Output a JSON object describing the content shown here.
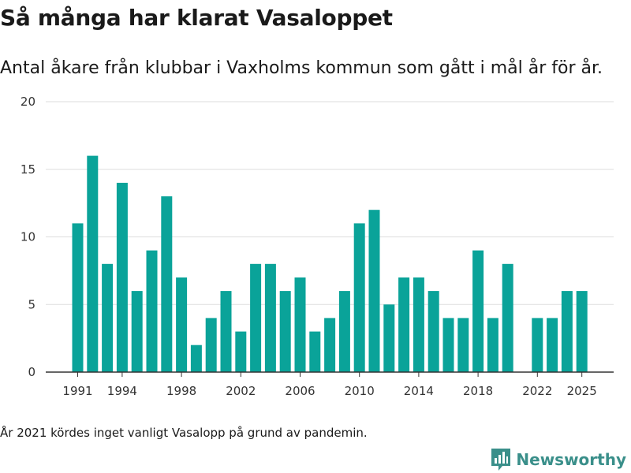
{
  "colors": {
    "bar": "#0aa399",
    "grid": "#dddddd",
    "axis": "#333333",
    "brand": "#3a8f8a"
  },
  "logo": {
    "text": "Newsworthy",
    "icon": "newsworthy-logo-icon"
  },
  "footnote": "År 2021 kördes inget vanligt Vasalopp på grund av pandemin.",
  "chart_data": {
    "type": "bar",
    "title": "Så många har klarat Vasaloppet",
    "subtitle": "Antal åkare från klubbar i Vaxholms kommun som gått i mål år för år.",
    "xlabel": "",
    "ylabel": "",
    "x": [
      1991,
      1992,
      1993,
      1994,
      1995,
      1996,
      1997,
      1998,
      1999,
      2000,
      2001,
      2002,
      2003,
      2004,
      2005,
      2006,
      2007,
      2008,
      2009,
      2010,
      2011,
      2012,
      2013,
      2014,
      2015,
      2016,
      2017,
      2018,
      2019,
      2020,
      2021,
      2022,
      2023,
      2024,
      2025
    ],
    "values": [
      11,
      16,
      8,
      14,
      6,
      9,
      13,
      7,
      2,
      4,
      6,
      3,
      8,
      8,
      6,
      7,
      3,
      4,
      6,
      11,
      12,
      5,
      7,
      7,
      6,
      4,
      4,
      9,
      4,
      8,
      null,
      4,
      4,
      6,
      6
    ],
    "ylim": [
      0,
      20
    ],
    "yticks": [
      0,
      5,
      10,
      15,
      20
    ],
    "xticks": [
      1991,
      1994,
      1998,
      2002,
      2006,
      2010,
      2014,
      2018,
      2022,
      2025
    ],
    "grid": true,
    "legend": "none"
  }
}
